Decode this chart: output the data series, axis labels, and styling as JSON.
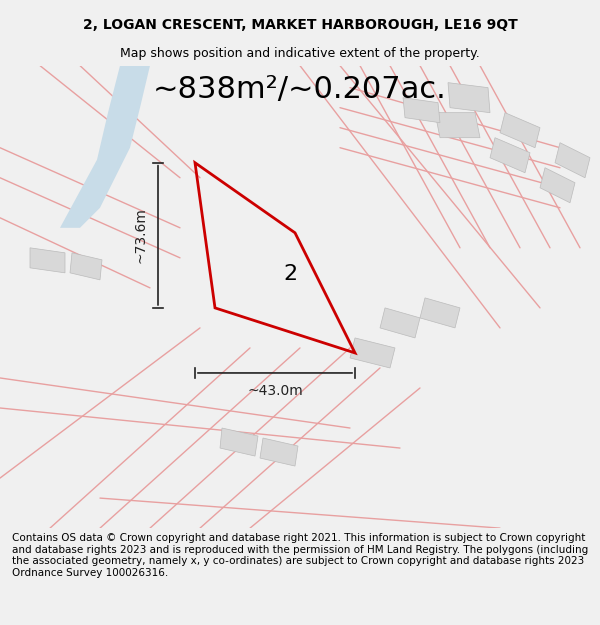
{
  "title_line1": "2, LOGAN CRESCENT, MARKET HARBOROUGH, LE16 9QT",
  "title_line2": "Map shows position and indicative extent of the property.",
  "area_text": "~838m²/~0.207ac.",
  "label_number": "2",
  "dim_width": "~43.0m",
  "dim_height": "~73.6m",
  "footer_text": "Contains OS data © Crown copyright and database right 2021. This information is subject to Crown copyright and database rights 2023 and is reproduced with the permission of HM Land Registry. The polygons (including the associated geometry, namely x, y co-ordinates) are subject to Crown copyright and database rights 2023 Ordnance Survey 100026316.",
  "bg_color": "#f5f5f5",
  "map_bg": "#ffffff",
  "road_color": "#e8a0a0",
  "building_color": "#d8d8d8",
  "plot_color": "#cc0000",
  "water_color": "#c8dce8",
  "dim_color": "#222222",
  "title_fontsize": 10,
  "area_fontsize": 22,
  "label_fontsize": 16,
  "dim_fontsize": 10,
  "footer_fontsize": 7.5
}
